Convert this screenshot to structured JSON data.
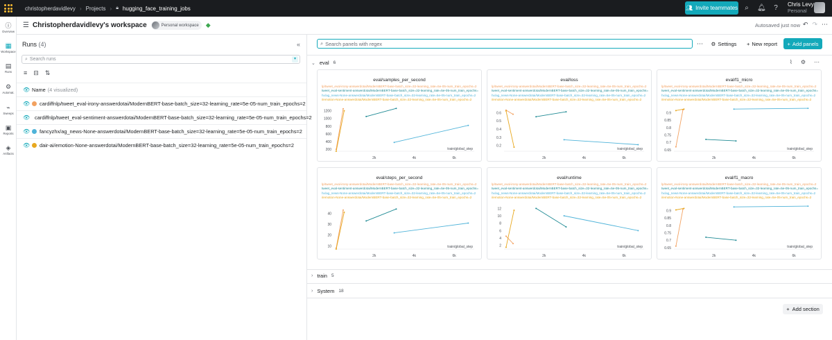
{
  "topbar": {
    "crumbs": [
      "christopherdavidlevy",
      "Projects",
      "hugging_face_training_jobs"
    ],
    "invite_label": "Invite teammates",
    "user_name": "Chris Levy",
    "user_sub": "Personal"
  },
  "leftnav": [
    "Overview",
    "Workspace",
    "Runs",
    "Automat.",
    "Sweeps",
    "Reports",
    "Artifacts"
  ],
  "workspace": {
    "title": "Christopherdavidlevy's workspace",
    "badge": "Personal workspace",
    "autosave": "Autosaved just now"
  },
  "runs": {
    "title": "Runs",
    "count": "(4)",
    "search_placeholder": "Search runs",
    "name_header": "Name",
    "name_sub": "(4 visualized)",
    "items": [
      {
        "name": "cardiffnlp/tweet_eval-irony-answerdotai/ModernBERT-base-batch_size=32-learning_rate=5e-05-num_train_epochs=2",
        "color": "#f2a160"
      },
      {
        "name": "cardiffnlp/tweet_eval-sentiment-answerdotai/ModernBERT-base-batch_size=32-learning_rate=5e-05-num_train_epochs=2",
        "color": "#1f8a94"
      },
      {
        "name": "fancyzhx/ag_news-None-answerdotai/ModernBERT-base-batch_size=32-learning_rate=5e-05-num_train_epochs=2",
        "color": "#4fb3d9"
      },
      {
        "name": "dair-ai/emotion-None-answerdotai/ModernBERT-base-batch_size=32-learning_rate=5e-05-num_train_epochs=2",
        "color": "#e8a81f"
      }
    ]
  },
  "main": {
    "panel_search_placeholder": "Search panels with regex",
    "settings_label": "Settings",
    "new_report_label": "New report",
    "add_panels_label": "Add panels",
    "add_section_label": "Add section",
    "sections": [
      {
        "name": "eval",
        "count": "6"
      },
      {
        "name": "train",
        "count": "5"
      },
      {
        "name": "System",
        "count": "18"
      }
    ]
  },
  "legend_lines": [
    {
      "text": "lp/tweet_eval-irony-answerdotai/ModernBERT-base-batch_size=32-learning_rate=5e-05-num_train_epochs=2",
      "color": "#f2a160"
    },
    {
      "text": "tweet_eval-sentiment-answerdotai/ModernBERT-base-batch_size=32-learning_rate=5e-05-num_train_epochs=2",
      "color": "#1f8a94"
    },
    {
      "text": "hx/ag_news-None-answerdotai/ModernBERT-base-batch_size=32-learning_rate=5e-05-num_train_epochs=2",
      "color": "#4fb3d9"
    },
    {
      "text": "i/emotion-None-answerdotai/ModernBERT-base-batch_size=32-learning_rate=5e-05-num_train_epochs=2",
      "color": "#e8a81f"
    }
  ],
  "chart_data": [
    {
      "type": "line",
      "title": "eval/samples_per_second",
      "xlabel": "train/global_step",
      "xticks": [
        "2k",
        "4k",
        "6k"
      ],
      "xlim": [
        0,
        7000
      ],
      "yticks": [
        "200",
        "400",
        "600",
        "800",
        "1000",
        "1200"
      ],
      "ylim": [
        150,
        1300
      ],
      "series": [
        {
          "color": "#f2a160",
          "x": [
            100,
            450
          ],
          "y": [
            200,
            1250
          ]
        },
        {
          "color": "#1f8a94",
          "x": [
            1600,
            3100
          ],
          "y": [
            1050,
            1260
          ]
        },
        {
          "color": "#4fb3d9",
          "x": [
            3000,
            6700
          ],
          "y": [
            380,
            820
          ]
        },
        {
          "color": "#e8a81f",
          "x": [
            100,
            500
          ],
          "y": [
            150,
            1200
          ]
        }
      ]
    },
    {
      "type": "line",
      "title": "eval/loss",
      "xlabel": "train/global_step",
      "xticks": [
        "2k",
        "4k",
        "6k"
      ],
      "xlim": [
        0,
        7000
      ],
      "yticks": [
        "0.2",
        "0.3",
        "0.4",
        "0.5",
        "0.6"
      ],
      "ylim": [
        0.13,
        0.67
      ],
      "series": [
        {
          "color": "#f2a160",
          "x": [
            100,
            450
          ],
          "y": [
            0.63,
            0.58
          ]
        },
        {
          "color": "#1f8a94",
          "x": [
            1600,
            3100
          ],
          "y": [
            0.55,
            0.61
          ]
        },
        {
          "color": "#4fb3d9",
          "x": [
            3000,
            6700
          ],
          "y": [
            0.27,
            0.21
          ]
        },
        {
          "color": "#e8a81f",
          "x": [
            100,
            500
          ],
          "y": [
            0.62,
            0.18
          ]
        }
      ]
    },
    {
      "type": "line",
      "title": "eval/f1_micro",
      "xlabel": "train/global_step",
      "xticks": [
        "2k",
        "4k",
        "6k"
      ],
      "xlim": [
        0,
        7000
      ],
      "yticks": [
        "0.65",
        "0.7",
        "0.75",
        "0.8",
        "0.85",
        "0.9"
      ],
      "ylim": [
        0.64,
        0.94
      ],
      "series": [
        {
          "color": "#f2a160",
          "x": [
            100,
            450
          ],
          "y": [
            0.67,
            0.92
          ]
        },
        {
          "color": "#1f8a94",
          "x": [
            1600,
            3100
          ],
          "y": [
            0.72,
            0.71
          ]
        },
        {
          "color": "#4fb3d9",
          "x": [
            3000,
            6700
          ],
          "y": [
            0.925,
            0.93
          ]
        },
        {
          "color": "#e8a81f",
          "x": [
            100,
            500
          ],
          "y": [
            0.915,
            0.925
          ]
        }
      ]
    },
    {
      "type": "line",
      "title": "eval/steps_per_second",
      "xlabel": "train/global_step",
      "xticks": [
        "2k",
        "4k",
        "6k"
      ],
      "xlim": [
        0,
        7000
      ],
      "yticks": [
        "10",
        "20",
        "30",
        "40"
      ],
      "ylim": [
        7,
        48
      ],
      "series": [
        {
          "color": "#f2a160",
          "x": [
            100,
            450
          ],
          "y": [
            8,
            43
          ]
        },
        {
          "color": "#1f8a94",
          "x": [
            1600,
            3100
          ],
          "y": [
            33,
            44
          ]
        },
        {
          "color": "#4fb3d9",
          "x": [
            3000,
            6700
          ],
          "y": [
            22,
            31
          ]
        },
        {
          "color": "#e8a81f",
          "x": [
            100,
            500
          ],
          "y": [
            7,
            41
          ]
        }
      ]
    },
    {
      "type": "line",
      "title": "eval/runtime",
      "xlabel": "train/global_step",
      "xticks": [
        "2k",
        "4k",
        "6k"
      ],
      "xlim": [
        0,
        7000
      ],
      "yticks": [
        "2",
        "4",
        "6",
        "8",
        "10",
        "12"
      ],
      "ylim": [
        1,
        13
      ],
      "series": [
        {
          "color": "#f2a160",
          "x": [
            100,
            450
          ],
          "y": [
            4.5,
            2.5
          ]
        },
        {
          "color": "#1f8a94",
          "x": [
            1600,
            3100
          ],
          "y": [
            12,
            7
          ]
        },
        {
          "color": "#4fb3d9",
          "x": [
            3000,
            6700
          ],
          "y": [
            10,
            6
          ]
        },
        {
          "color": "#e8a81f",
          "x": [
            100,
            500
          ],
          "y": [
            1.5,
            11.5
          ]
        }
      ]
    },
    {
      "type": "line",
      "title": "eval/f1_macro",
      "xlabel": "train/global_step",
      "xticks": [
        "2k",
        "4k",
        "6k"
      ],
      "xlim": [
        0,
        7000
      ],
      "yticks": [
        "0.65",
        "0.7",
        "0.75",
        "0.8",
        "0.85",
        "0.9"
      ],
      "ylim": [
        0.64,
        0.94
      ],
      "series": [
        {
          "color": "#f2a160",
          "x": [
            100,
            450
          ],
          "y": [
            0.66,
            0.91
          ]
        },
        {
          "color": "#1f8a94",
          "x": [
            1600,
            3100
          ],
          "y": [
            0.72,
            0.7
          ]
        },
        {
          "color": "#4fb3d9",
          "x": [
            3000,
            6700
          ],
          "y": [
            0.925,
            0.93
          ]
        },
        {
          "color": "#e8a81f",
          "x": [
            100,
            500
          ],
          "y": [
            0.905,
            0.915
          ]
        }
      ]
    }
  ]
}
